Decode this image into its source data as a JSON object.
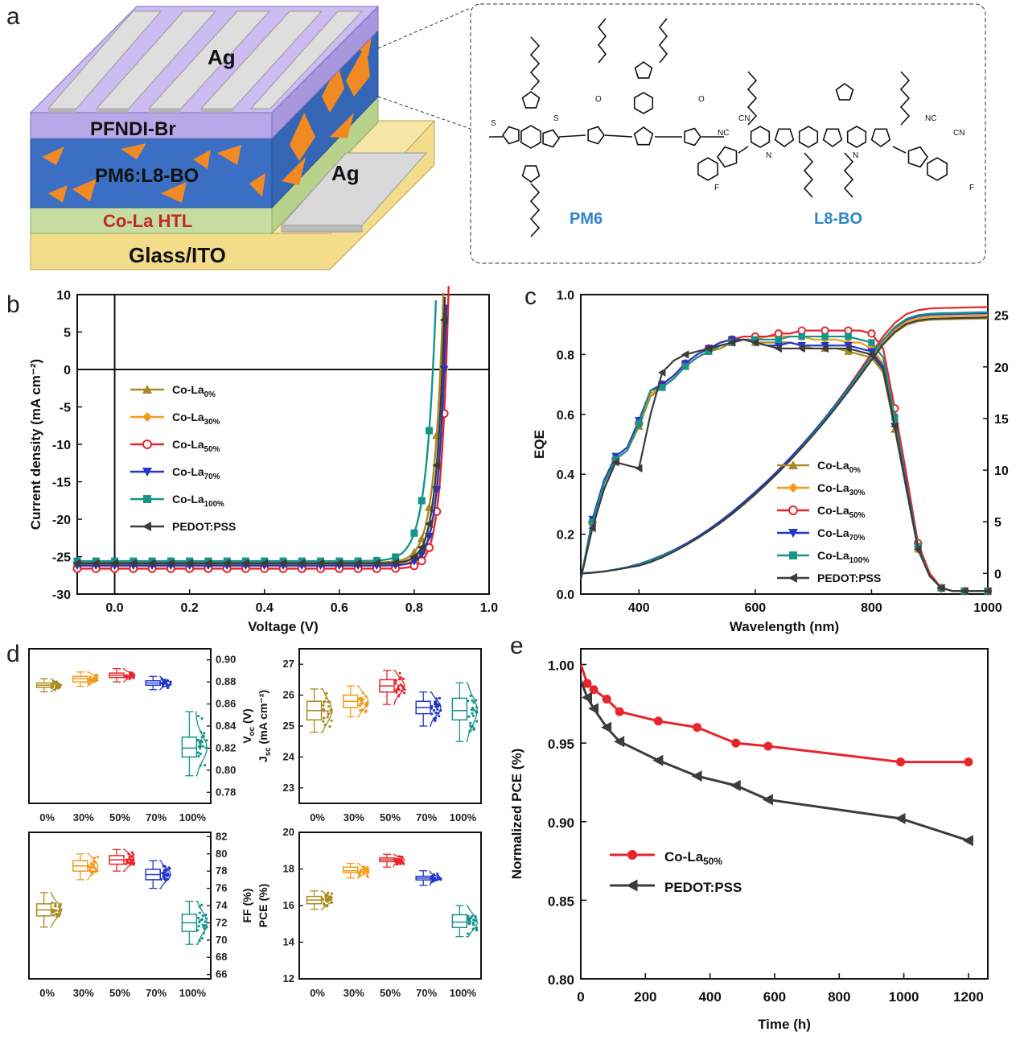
{
  "panel_labels": [
    "a",
    "b",
    "c",
    "d",
    "e"
  ],
  "device": {
    "layers": [
      "Ag",
      "PFNDI-Br",
      "PM6:L8-BO",
      "Ag",
      "Co-La HTL",
      "Glass/ITO"
    ],
    "colors": {
      "ag": "#d9d9d9",
      "pfndi": "#b9a8e8",
      "active": "#3a6fc4",
      "orange": "#f28a24",
      "htl": "#c6dd9f",
      "glass": "#f3dd8a",
      "htl_text": "#c0282a"
    }
  },
  "molecules": {
    "donor": "PM6",
    "acceptor": "L8-BO"
  },
  "colors": {
    "c0": "#a88a1e",
    "c30": "#f29a1a",
    "c50": "#e8252a",
    "c70": "#2237c8",
    "c100": "#16948a",
    "pedot": "#3c3c3c"
  },
  "chart_data": [
    {
      "id": "jv",
      "type": "line",
      "xlabel": "Voltage (V)",
      "ylabel": "Current density (mA cm⁻²)",
      "xlim": [
        -0.1,
        1.0
      ],
      "ylim": [
        -30,
        10
      ],
      "xticks": [
        "0.0",
        "0.2",
        "0.4",
        "0.6",
        "0.8",
        "1.0"
      ],
      "yticks": [
        "10",
        "5",
        "0",
        "-5",
        "-10",
        "-15",
        "-20",
        "-25",
        "-30"
      ],
      "legend_position": "left",
      "series": [
        {
          "name": "Co-La",
          "sub": "0%",
          "key": "c0",
          "marker": "triangle-up",
          "jsc": -25.8,
          "voc": 0.87,
          "n": 0.024
        },
        {
          "name": "Co-La",
          "sub": "30%",
          "key": "c30",
          "marker": "diamond",
          "jsc": -26.0,
          "voc": 0.88,
          "n": 0.021
        },
        {
          "name": "Co-La",
          "sub": "50%",
          "key": "c50",
          "marker": "circle",
          "jsc": -26.6,
          "voc": 0.885,
          "n": 0.02
        },
        {
          "name": "Co-La",
          "sub": "70%",
          "key": "c70",
          "marker": "triangle-down",
          "jsc": -26.2,
          "voc": 0.88,
          "n": 0.021
        },
        {
          "name": "Co-La",
          "sub": "100%",
          "key": "c100",
          "marker": "square",
          "jsc": -25.6,
          "voc": 0.85,
          "n": 0.026
        },
        {
          "name": "PEDOT:PSS",
          "sub": "",
          "key": "pedot",
          "marker": "triangle-left",
          "jsc": -25.9,
          "voc": 0.875,
          "n": 0.022
        }
      ]
    },
    {
      "id": "eqe",
      "type": "line",
      "xlabel": "Wavelength (nm)",
      "ylabel": "EQE",
      "xlim": [
        300,
        1000
      ],
      "ylim": [
        0.0,
        1.0
      ],
      "y2lim": [
        -2,
        27
      ],
      "xticks": [
        "400",
        "600",
        "800",
        "1000"
      ],
      "yticks": [
        "1.0",
        "0.8",
        "0.6",
        "0.4",
        "0.2",
        "0.0"
      ],
      "y2ticks": [
        "25",
        "20",
        "15",
        "10",
        "5",
        "0"
      ],
      "legend_position": "bottom-right",
      "x": [
        300,
        320,
        340,
        360,
        380,
        400,
        420,
        440,
        460,
        480,
        500,
        520,
        540,
        560,
        580,
        600,
        620,
        640,
        660,
        680,
        700,
        720,
        740,
        760,
        780,
        800,
        820,
        840,
        860,
        880,
        900,
        920,
        940,
        960,
        980,
        1000
      ],
      "series": [
        {
          "name": "Co-La",
          "sub": "0%",
          "key": "c0",
          "marker": "triangle-up",
          "eqe": [
            0.05,
            0.24,
            0.37,
            0.45,
            0.48,
            0.56,
            0.66,
            0.69,
            0.72,
            0.76,
            0.79,
            0.81,
            0.82,
            0.84,
            0.85,
            0.84,
            0.84,
            0.84,
            0.84,
            0.83,
            0.82,
            0.82,
            0.82,
            0.81,
            0.8,
            0.79,
            0.74,
            0.55,
            0.35,
            0.15,
            0.06,
            0.02,
            0.01,
            0.01,
            0.01,
            0.01
          ],
          "jmax": 24.7
        },
        {
          "name": "Co-La",
          "sub": "30%",
          "key": "c30",
          "marker": "diamond",
          "eqe": [
            0.05,
            0.24,
            0.37,
            0.45,
            0.48,
            0.57,
            0.67,
            0.69,
            0.72,
            0.76,
            0.79,
            0.81,
            0.83,
            0.84,
            0.85,
            0.85,
            0.86,
            0.86,
            0.86,
            0.86,
            0.85,
            0.85,
            0.85,
            0.84,
            0.84,
            0.82,
            0.77,
            0.57,
            0.36,
            0.15,
            0.06,
            0.02,
            0.01,
            0.01,
            0.01,
            0.01
          ],
          "jmax": 25.0
        },
        {
          "name": "Co-La",
          "sub": "50%",
          "key": "c50",
          "marker": "circle",
          "eqe": [
            0.05,
            0.24,
            0.37,
            0.45,
            0.48,
            0.57,
            0.68,
            0.7,
            0.73,
            0.77,
            0.8,
            0.82,
            0.84,
            0.85,
            0.86,
            0.86,
            0.86,
            0.87,
            0.87,
            0.88,
            0.88,
            0.88,
            0.88,
            0.88,
            0.88,
            0.87,
            0.82,
            0.62,
            0.4,
            0.17,
            0.07,
            0.02,
            0.01,
            0.01,
            0.01,
            0.01
          ],
          "jmax": 25.8
        },
        {
          "name": "Co-La",
          "sub": "70%",
          "key": "c70",
          "marker": "triangle-down",
          "eqe": [
            0.05,
            0.25,
            0.38,
            0.46,
            0.49,
            0.58,
            0.68,
            0.7,
            0.73,
            0.77,
            0.8,
            0.82,
            0.84,
            0.85,
            0.85,
            0.84,
            0.83,
            0.83,
            0.84,
            0.83,
            0.83,
            0.83,
            0.83,
            0.83,
            0.82,
            0.81,
            0.76,
            0.56,
            0.35,
            0.15,
            0.06,
            0.02,
            0.01,
            0.01,
            0.01,
            0.01
          ],
          "jmax": 25.2
        },
        {
          "name": "Co-La",
          "sub": "100%",
          "key": "c100",
          "marker": "square",
          "eqe": [
            0.05,
            0.24,
            0.37,
            0.45,
            0.48,
            0.57,
            0.68,
            0.69,
            0.72,
            0.76,
            0.79,
            0.81,
            0.83,
            0.84,
            0.85,
            0.85,
            0.85,
            0.85,
            0.86,
            0.86,
            0.86,
            0.86,
            0.86,
            0.86,
            0.85,
            0.84,
            0.79,
            0.59,
            0.37,
            0.16,
            0.06,
            0.02,
            0.01,
            0.01,
            0.01,
            0.01
          ],
          "jmax": 25.3
        },
        {
          "name": "PEDOT:PSS",
          "sub": "",
          "key": "pedot",
          "marker": "triangle-left",
          "eqe": [
            0.05,
            0.22,
            0.35,
            0.44,
            0.43,
            0.42,
            0.6,
            0.74,
            0.78,
            0.8,
            0.81,
            0.82,
            0.83,
            0.84,
            0.85,
            0.84,
            0.83,
            0.82,
            0.82,
            0.82,
            0.82,
            0.82,
            0.82,
            0.82,
            0.81,
            0.8,
            0.75,
            0.56,
            0.36,
            0.15,
            0.06,
            0.02,
            0.01,
            0.01,
            0.01,
            0.01
          ],
          "jmax": 24.8
        }
      ]
    },
    {
      "id": "stats",
      "type": "box",
      "categories": [
        "0%",
        "30%",
        "50%",
        "70%",
        "100%"
      ],
      "panels": [
        {
          "metric": "voc",
          "label": "V",
          "sub": "oc",
          "unit": " (V)",
          "ylim": [
            0.77,
            0.91
          ],
          "yticks": [
            "0.90",
            "0.88",
            "0.86",
            "0.84",
            "0.82",
            "0.80",
            "0.78"
          ],
          "axis_side": "right",
          "boxes": [
            [
              0.871,
              0.875,
              0.877,
              0.879,
              0.883
            ],
            [
              0.876,
              0.88,
              0.883,
              0.885,
              0.889
            ],
            [
              0.88,
              0.884,
              0.886,
              0.888,
              0.892
            ],
            [
              0.873,
              0.877,
              0.879,
              0.881,
              0.885
            ],
            [
              0.795,
              0.812,
              0.82,
              0.83,
              0.853
            ]
          ]
        },
        {
          "metric": "jsc",
          "label": "J",
          "sub": "sc",
          "unit": " (mA cm⁻²)",
          "ylim": [
            22.5,
            27.5
          ],
          "yticks": [
            "27",
            "26",
            "25",
            "24",
            "23"
          ],
          "axis_side": "left",
          "boxes": [
            [
              24.8,
              25.2,
              25.5,
              25.8,
              26.2
            ],
            [
              25.3,
              25.6,
              25.8,
              26.0,
              26.3
            ],
            [
              25.7,
              26.1,
              26.3,
              26.5,
              26.8
            ],
            [
              25.0,
              25.4,
              25.6,
              25.8,
              26.1
            ],
            [
              24.5,
              25.2,
              25.5,
              25.9,
              26.4
            ]
          ]
        },
        {
          "metric": "ff",
          "label": "FF (%)",
          "sub": "",
          "unit": "",
          "ylim": [
            65.5,
            82.5
          ],
          "yticks": [
            "82",
            "80",
            "78",
            "76",
            "74",
            "72",
            "70",
            "68",
            "66"
          ],
          "axis_side": "right",
          "boxes": [
            [
              71.5,
              72.8,
              73.5,
              74.2,
              75.5
            ],
            [
              77.0,
              78.0,
              78.6,
              79.2,
              80.0
            ],
            [
              78.0,
              78.8,
              79.3,
              79.8,
              80.5
            ],
            [
              76.0,
              77.0,
              77.6,
              78.2,
              79.2
            ],
            [
              69.5,
              71.0,
              72.0,
              73.0,
              74.5
            ]
          ]
        },
        {
          "metric": "pce",
          "label": "PCE (%)",
          "sub": "",
          "unit": "",
          "ylim": [
            12,
            20
          ],
          "yticks": [
            "20",
            "18",
            "16",
            "14",
            "12"
          ],
          "axis_side": "left",
          "boxes": [
            [
              15.8,
              16.1,
              16.3,
              16.5,
              16.8
            ],
            [
              17.5,
              17.8,
              17.9,
              18.1,
              18.3
            ],
            [
              18.1,
              18.4,
              18.5,
              18.6,
              18.8
            ],
            [
              17.1,
              17.4,
              17.5,
              17.6,
              17.9
            ],
            [
              14.3,
              14.8,
              15.1,
              15.5,
              16.0
            ]
          ]
        }
      ]
    },
    {
      "id": "stability",
      "type": "line",
      "xlabel": "Time (h)",
      "ylabel": "Normalized PCE (%)",
      "xlim": [
        0,
        1260
      ],
      "ylim": [
        0.8,
        1.01
      ],
      "xticks": [
        "0",
        "200",
        "400",
        "600",
        "800",
        "1000",
        "1200"
      ],
      "yticks": [
        "1.00",
        "0.95",
        "0.90",
        "0.85",
        "0.80"
      ],
      "legend_position": "bottom-left",
      "series": [
        {
          "name": "Co-La",
          "sub": "50%",
          "key": "c50",
          "marker": "circle",
          "x": [
            0,
            20,
            40,
            80,
            120,
            240,
            360,
            480,
            580,
            990,
            1200
          ],
          "y": [
            1.0,
            0.988,
            0.984,
            0.978,
            0.97,
            0.964,
            0.96,
            0.95,
            0.948,
            0.938,
            0.938
          ]
        },
        {
          "name": "PEDOT:PSS",
          "sub": "",
          "key": "pedot",
          "marker": "triangle-left",
          "x": [
            0,
            20,
            40,
            80,
            120,
            240,
            360,
            480,
            580,
            990,
            1200
          ],
          "y": [
            0.99,
            0.979,
            0.972,
            0.96,
            0.951,
            0.939,
            0.929,
            0.923,
            0.914,
            0.902,
            0.888
          ]
        }
      ]
    }
  ]
}
